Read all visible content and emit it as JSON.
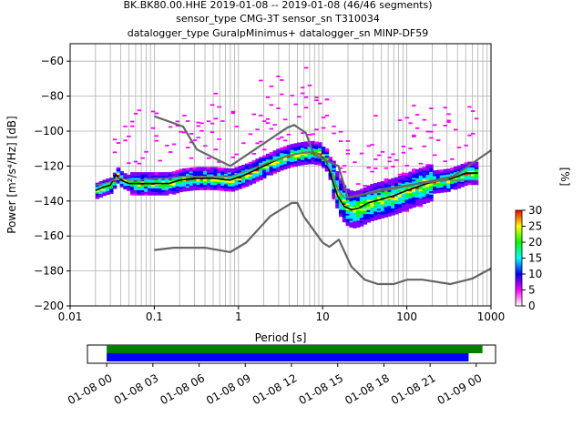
{
  "title_lines": [
    "BK.BK80.00.HHE   2019-01-08 -- 2019-01-08  (46/46 segments)",
    "sensor_type CMG-3T sensor_sn T310034",
    "datalogger_type GuralpMinimus+ datalogger_sn MINP-DF59"
  ],
  "chart_data": [
    {
      "type": "heatmap",
      "subtype": "probabilistic power spectral density",
      "xlabel": "Period [s]",
      "ylabel": "Power [m²/s⁴/Hz] [dB]",
      "x_scale": "log",
      "xlim": [
        0.01,
        1000
      ],
      "ylim": [
        -200,
        -50
      ],
      "x_ticks": [
        0.01,
        0.1,
        1,
        10,
        100,
        1000
      ],
      "x_tick_labels": [
        "0.01",
        "0.1",
        "1",
        "10",
        "100",
        "1000"
      ],
      "y_ticks": [
        -200,
        -180,
        -160,
        -140,
        -120,
        -100,
        -80,
        -60
      ],
      "y_tick_labels": [
        "−200",
        "−180",
        "−160",
        "−140",
        "−120",
        "−100",
        "−80",
        "−60"
      ],
      "grid": true,
      "colorbar": {
        "label": "[%]",
        "range": [
          0,
          30
        ],
        "ticks": [
          0,
          5,
          10,
          15,
          20,
          25,
          30
        ],
        "colors": [
          "#ffffff",
          "#ff00ff",
          "#0000ff",
          "#00ffff",
          "#00ff00",
          "#ffff00",
          "#ff0000"
        ]
      },
      "series": [
        {
          "role": "mean",
          "color": "#000000",
          "x": [
            0.02,
            0.025,
            0.03,
            0.035,
            0.04,
            0.05,
            0.07,
            0.1,
            0.15,
            0.2,
            0.3,
            0.5,
            0.8,
            1.2,
            2,
            3,
            4,
            5,
            7,
            9,
            11,
            13,
            15,
            18,
            22,
            27,
            35,
            50,
            70,
            100,
            150,
            200,
            300,
            400,
            500,
            700
          ],
          "y": [
            -134,
            -132,
            -131,
            -125,
            -128,
            -130,
            -130,
            -130,
            -130,
            -128,
            -127,
            -127,
            -128,
            -125,
            -120,
            -116,
            -114,
            -113,
            -112,
            -113,
            -117,
            -128,
            -137,
            -143,
            -145,
            -144,
            -141,
            -139,
            -137,
            -134,
            -131,
            -129,
            -128,
            -126,
            -124,
            -124
          ]
        },
        {
          "role": "mode",
          "color": "#777777",
          "x": [
            0.02,
            0.025,
            0.03,
            0.035,
            0.04,
            0.05,
            0.07,
            0.1,
            0.15,
            0.2,
            0.3,
            0.5,
            0.8,
            1.2,
            2,
            3,
            4,
            5,
            7,
            9,
            11,
            13,
            15,
            18,
            22,
            27,
            35,
            50,
            70,
            100,
            150,
            200,
            300,
            400,
            500,
            700
          ],
          "y": [
            -131,
            -130,
            -129,
            -127,
            -127,
            -128,
            -128,
            -127,
            -127,
            -126,
            -126,
            -126,
            -126,
            -123,
            -119,
            -116,
            -114,
            -113,
            -112,
            -113,
            -118,
            -124,
            -133,
            -138,
            -138,
            -137,
            -135,
            -133,
            -132,
            -131,
            -130,
            -129,
            -128,
            -128,
            -128,
            -128
          ]
        },
        {
          "role": "noise-model-high",
          "color": "#666666",
          "x": [
            0.1,
            0.22,
            0.32,
            0.8,
            3.8,
            4.6,
            6.3,
            7.9,
            15.4,
            20,
            354.8,
            1000
          ],
          "y": [
            -91.5,
            -97.4,
            -110.5,
            -120,
            -98,
            -96.5,
            -101,
            -113.5,
            -120,
            -138,
            -126,
            -111
          ]
        },
        {
          "role": "noise-model-low",
          "color": "#666666",
          "x": [
            0.1,
            0.17,
            0.4,
            0.8,
            1.24,
            2.4,
            4.3,
            5.0,
            6.0,
            10.0,
            12.0,
            15.6,
            21.9,
            31.6,
            45.0,
            70.0,
            101.0,
            154.0,
            328.0,
            600.0,
            1000.0
          ],
          "y": [
            -168,
            -166.7,
            -166.7,
            -169.2,
            -163.7,
            -148.6,
            -141.1,
            -141.1,
            -149.0,
            -163.8,
            -166.2,
            -162.1,
            -177.5,
            -185.0,
            -187.5,
            -187.5,
            -185.0,
            -185.0,
            -187.5,
            -184.4,
            -178.6
          ]
        }
      ]
    },
    {
      "type": "gantt",
      "subtype": "data coverage",
      "x_tick_labels": [
        "01-08 00",
        "01-08 03",
        "01-08 06",
        "01-08 09",
        "01-08 12",
        "01-08 15",
        "01-08 18",
        "01-08 21",
        "01-09 00"
      ],
      "x_hours": [
        0,
        3,
        6,
        9,
        12,
        15,
        18,
        21,
        24
      ],
      "xlim_hours": [
        -1.25,
        25.25
      ],
      "bars": [
        {
          "role": "data",
          "color": "#008000",
          "start_hour": 0,
          "end_hour": 24.4
        },
        {
          "role": "used",
          "color": "#0000ff",
          "start_hour": 0,
          "end_hour": 23.5
        }
      ]
    }
  ]
}
